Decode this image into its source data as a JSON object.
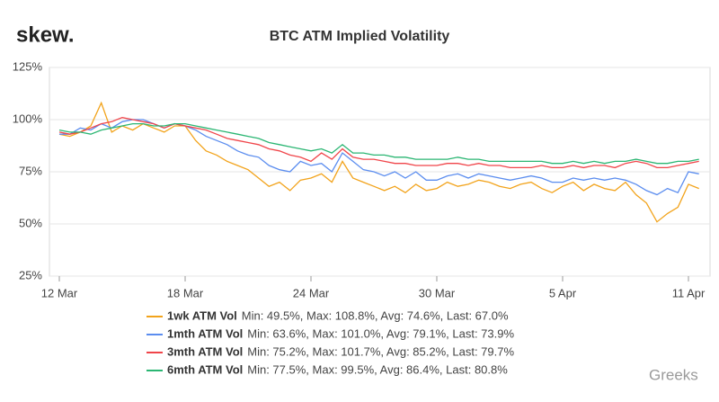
{
  "brand": "skew.",
  "watermark": "Greeks",
  "chart_data": {
    "type": "line",
    "title": "BTC ATM Implied Volatility",
    "categories": [
      "12 Mar",
      null,
      null,
      null,
      null,
      null,
      null,
      null,
      null,
      null,
      null,
      null,
      "18 Mar",
      null,
      null,
      null,
      null,
      null,
      null,
      null,
      null,
      null,
      null,
      null,
      "24 Mar",
      null,
      null,
      null,
      null,
      null,
      null,
      null,
      null,
      null,
      null,
      null,
      "30 Mar",
      null,
      null,
      null,
      null,
      null,
      null,
      null,
      null,
      null,
      null,
      null,
      "5 Apr",
      null,
      null,
      null,
      null,
      null,
      null,
      null,
      null,
      null,
      null,
      null,
      "11 Apr",
      null
    ],
    "ylim": [
      25,
      125
    ],
    "yticks": [
      {
        "value": 25,
        "label": "25%"
      },
      {
        "value": 50,
        "label": "50%"
      },
      {
        "value": 75,
        "label": "75%"
      },
      {
        "value": 100,
        "label": "100%"
      },
      {
        "value": 125,
        "label": "125%"
      }
    ],
    "grid": true,
    "legend": "bottom",
    "series": [
      {
        "name": "1wk ATM Vol",
        "stats": "Min: 49.5%, Max: 108.8%, Avg: 74.6%, Last: 67.0%",
        "color": "#f2a31b",
        "values": [
          93,
          92,
          94,
          97,
          108,
          94,
          97,
          95,
          98,
          96,
          94,
          97,
          97,
          90,
          85,
          83,
          80,
          78,
          76,
          72,
          68,
          70,
          66,
          71,
          72,
          74,
          70,
          80,
          72,
          70,
          68,
          66,
          68,
          65,
          69,
          66,
          67,
          70,
          68,
          69,
          71,
          70,
          68,
          67,
          69,
          70,
          67,
          65,
          68,
          70,
          66,
          69,
          67,
          66,
          70,
          64,
          60,
          51,
          55,
          58,
          69,
          67
        ]
      },
      {
        "name": "1mth ATM Vol",
        "stats": "Min: 63.6%, Max: 101.0%, Avg: 79.1%, Last: 73.9%",
        "color": "#5b8def",
        "values": [
          93,
          93,
          96,
          95,
          98,
          96,
          99,
          100,
          100,
          98,
          96,
          98,
          97,
          95,
          92,
          90,
          88,
          85,
          83,
          82,
          78,
          76,
          75,
          80,
          78,
          79,
          75,
          84,
          80,
          76,
          75,
          73,
          75,
          72,
          75,
          71,
          71,
          73,
          74,
          72,
          74,
          73,
          72,
          71,
          72,
          73,
          72,
          70,
          70,
          72,
          71,
          72,
          71,
          72,
          71,
          69,
          66,
          64,
          67,
          65,
          75,
          74
        ]
      },
      {
        "name": "3mth ATM Vol",
        "stats": "Min: 75.2%, Max: 101.7%, Avg: 85.2%, Last: 79.7%",
        "color": "#f0454a",
        "values": [
          94,
          93,
          94,
          96,
          98,
          99,
          101,
          100,
          99,
          98,
          96,
          98,
          97,
          96,
          95,
          93,
          91,
          90,
          89,
          88,
          86,
          85,
          83,
          82,
          80,
          84,
          81,
          86,
          82,
          81,
          81,
          80,
          79,
          79,
          78,
          78,
          78,
          79,
          79,
          78,
          79,
          78,
          78,
          77,
          77,
          77,
          78,
          77,
          77,
          78,
          77,
          78,
          78,
          77,
          79,
          80,
          79,
          77,
          77,
          78,
          79,
          80
        ]
      },
      {
        "name": "6mth ATM Vol",
        "stats": "Min: 77.5%, Max: 99.5%, Avg: 86.4%, Last: 80.8%",
        "color": "#2bb673",
        "values": [
          95,
          94,
          94,
          93,
          95,
          96,
          97,
          98,
          98,
          97,
          97,
          98,
          98,
          97,
          96,
          95,
          94,
          93,
          92,
          91,
          89,
          88,
          87,
          86,
          85,
          86,
          84,
          88,
          84,
          84,
          83,
          83,
          82,
          82,
          81,
          81,
          81,
          81,
          82,
          81,
          81,
          80,
          80,
          80,
          80,
          80,
          80,
          79,
          79,
          80,
          79,
          80,
          79,
          80,
          80,
          81,
          80,
          79,
          79,
          80,
          80,
          81
        ]
      }
    ]
  }
}
